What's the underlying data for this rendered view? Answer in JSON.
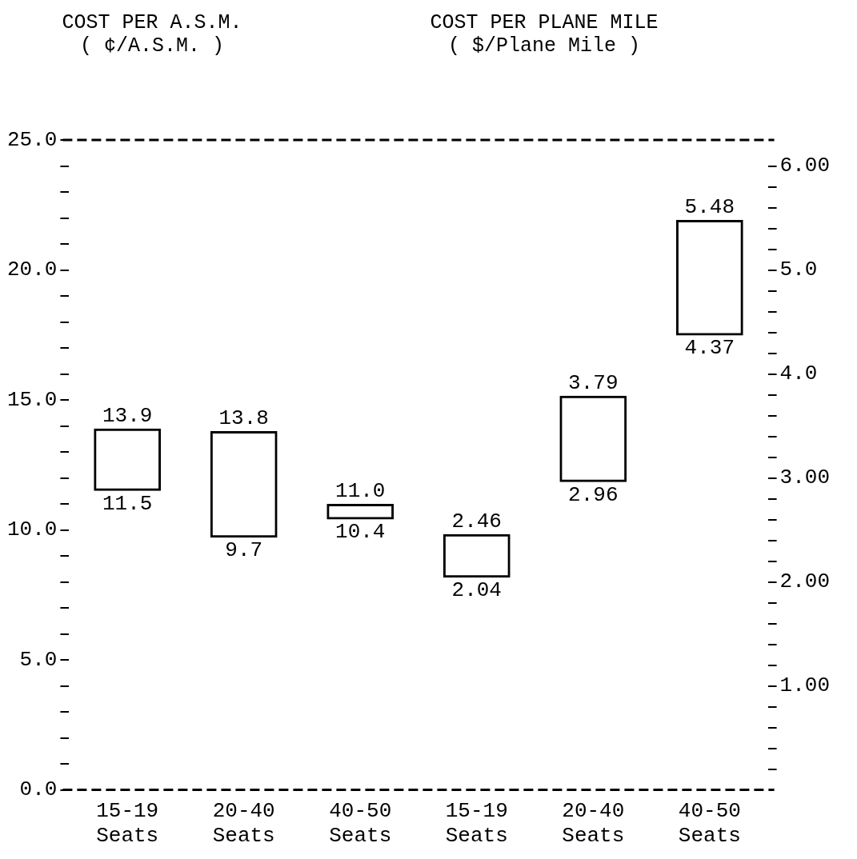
{
  "chart_data": {
    "type": "bar",
    "ylabel": "COST PER A.S.M.\n( ¢/A.S.M. )",
    "y2label": "COST PER PLANE MILE\n( $/Plane Mile )",
    "categories": [
      "15-19 Seats",
      "20-40 Seats",
      "40-50 Seats",
      "15-19 Seats",
      "20-40 Seats",
      "40-50 Seats"
    ],
    "series": [
      {
        "color": "#000000",
        "values": [
          2.4,
          4.1,
          0.6,
          null,
          null,
          null
        ],
        "base": [
          11.5,
          9.7,
          10.4,
          null,
          null,
          null
        ]
      },
      {
        "color": "#000000",
        "axis": "y2",
        "values": [
          null,
          null,
          null,
          0.42,
          0.83,
          1.11
        ],
        "base": [
          null,
          null,
          null,
          2.04,
          2.96,
          4.37
        ]
      }
    ],
    "ylim": [
      0,
      25
    ],
    "yticks": [
      {
        "value": 0,
        "label": "0.0"
      },
      {
        "value": 1,
        "label": null
      },
      {
        "value": 2,
        "label": null
      },
      {
        "value": 3,
        "label": null
      },
      {
        "value": 4,
        "label": null
      },
      {
        "value": 5,
        "label": "5.0"
      },
      {
        "value": 6,
        "label": null
      },
      {
        "value": 7,
        "label": null
      },
      {
        "value": 8,
        "label": null
      },
      {
        "value": 9,
        "label": null
      },
      {
        "value": 10,
        "label": "10.0"
      },
      {
        "value": 11,
        "label": null
      },
      {
        "value": 12,
        "label": null
      },
      {
        "value": 13,
        "label": null
      },
      {
        "value": 14,
        "label": null
      },
      {
        "value": 15,
        "label": "15.0"
      },
      {
        "value": 16,
        "label": null
      },
      {
        "value": 17,
        "label": null
      },
      {
        "value": 18,
        "label": null
      },
      {
        "value": 19,
        "label": null
      },
      {
        "value": 20,
        "label": "20.0"
      },
      {
        "value": 21,
        "label": null
      },
      {
        "value": 22,
        "label": null
      },
      {
        "value": 23,
        "label": null
      },
      {
        "value": 24,
        "label": null
      },
      {
        "value": 25,
        "label": "25.0"
      }
    ],
    "y2lim": [
      0,
      6.25
    ],
    "y2ticks": [
      {
        "value": 0.2,
        "label": null
      },
      {
        "value": 0.4,
        "label": null
      },
      {
        "value": 0.6,
        "label": null
      },
      {
        "value": 0.8,
        "label": null
      },
      {
        "value": 1,
        "label": "1.00"
      },
      {
        "value": 1.2,
        "label": null
      },
      {
        "value": 1.4,
        "label": null
      },
      {
        "value": 1.6,
        "label": null
      },
      {
        "value": 1.8,
        "label": null
      },
      {
        "value": 2,
        "label": "2.00"
      },
      {
        "value": 2.2,
        "label": null
      },
      {
        "value": 2.4,
        "label": null
      },
      {
        "value": 2.6,
        "label": null
      },
      {
        "value": 2.8,
        "label": null
      },
      {
        "value": 3,
        "label": "3.00"
      },
      {
        "value": 3.2,
        "label": null
      },
      {
        "value": 3.4,
        "label": null
      },
      {
        "value": 3.6,
        "label": null
      },
      {
        "value": 3.8,
        "label": null
      },
      {
        "value": 4,
        "label": "4.0"
      },
      {
        "value": 4.2,
        "label": null
      },
      {
        "value": 4.4,
        "label": null
      },
      {
        "value": 4.6,
        "label": null
      },
      {
        "value": 4.8,
        "label": null
      },
      {
        "value": 5,
        "label": "5.0"
      },
      {
        "value": 5.2,
        "label": null
      },
      {
        "value": 5.4,
        "label": null
      },
      {
        "value": 5.6,
        "label": null
      },
      {
        "value": 5.8,
        "label": null
      },
      {
        "value": 6,
        "label": "6.00"
      }
    ],
    "annotations": [
      "13.9",
      "11.5",
      "13.8",
      "9.7",
      "11.0",
      "10.4",
      "2.46",
      "2.04",
      "3.79",
      "2.96",
      "5.48",
      "4.37"
    ],
    "grid": false,
    "legend": false
  }
}
